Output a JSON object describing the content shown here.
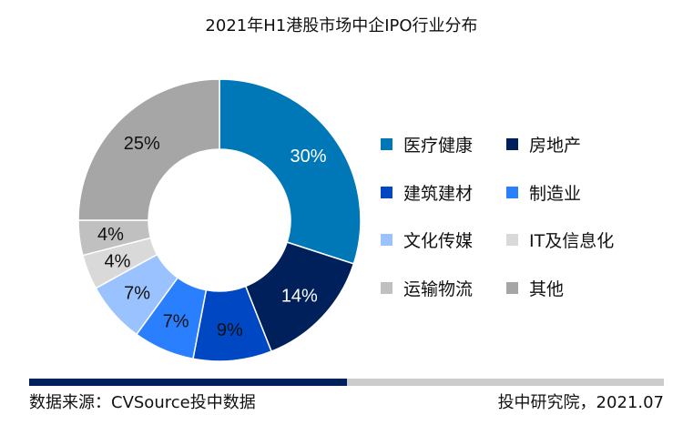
{
  "chart_data": {
    "type": "pie",
    "donut": true,
    "title": "2021年H1港股市场中企IPO行业分布",
    "categories": [
      "医疗健康",
      "房地产",
      "建筑建材",
      "制造业",
      "文化传媒",
      "IT及信息化",
      "运输物流",
      "其他"
    ],
    "values": [
      30,
      14,
      9,
      7,
      7,
      4,
      4,
      25
    ],
    "labels": [
      "30%",
      "14%",
      "9%",
      "7%",
      "7%",
      "4%",
      "4%",
      "25%"
    ],
    "colors": [
      "#0077B6",
      "#00205B",
      "#0047C4",
      "#2A7FFF",
      "#99C2FF",
      "#D9D9D9",
      "#C0C0C0",
      "#A6A6A6"
    ],
    "label_colors": [
      "#ffffff",
      "#ffffff",
      "#111111",
      "#111111",
      "#111111",
      "#111111",
      "#111111",
      "#111111"
    ],
    "legend_position": "right"
  },
  "footer": {
    "source": "数据来源：CVSource投中数据",
    "credit": "投中研究院，2021.07",
    "bar_colors": [
      "#00205B",
      "#CCCCCC"
    ]
  }
}
